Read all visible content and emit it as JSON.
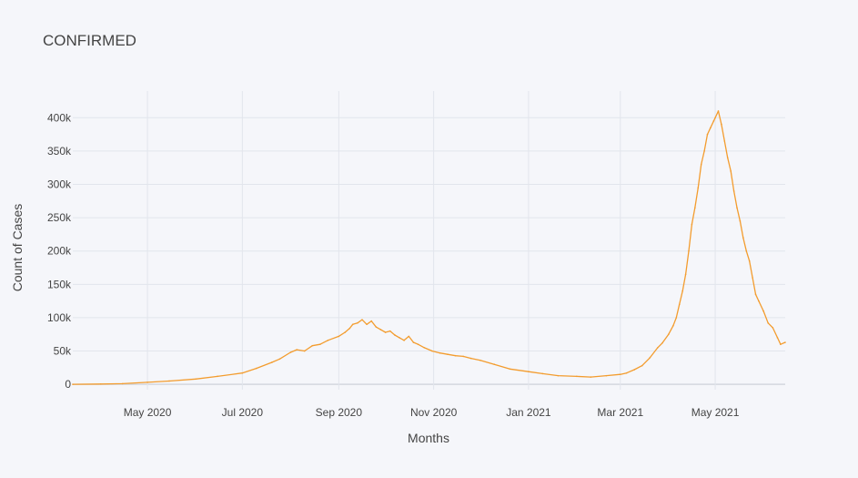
{
  "chart_data": {
    "type": "line",
    "title": "CONFIRMED",
    "xlabel": "Months",
    "ylabel": "Count of Cases",
    "xlim": [
      "2020-03-14",
      "2021-06-15"
    ],
    "ylim": [
      -8000,
      440000
    ],
    "grid": true,
    "legend": "none",
    "line_color": "#f39c2e",
    "x_ticks": [
      {
        "date": "2020-05-01",
        "label": "May 2020"
      },
      {
        "date": "2020-07-01",
        "label": "Jul 2020"
      },
      {
        "date": "2020-09-01",
        "label": "Sep 2020"
      },
      {
        "date": "2020-11-01",
        "label": "Nov 2020"
      },
      {
        "date": "2021-01-01",
        "label": "Jan 2021"
      },
      {
        "date": "2021-03-01",
        "label": "Mar 2021"
      },
      {
        "date": "2021-05-01",
        "label": "May 2021"
      }
    ],
    "y_ticks": [
      {
        "value": 0,
        "label": "0"
      },
      {
        "value": 50000,
        "label": "50k"
      },
      {
        "value": 100000,
        "label": "100k"
      },
      {
        "value": 150000,
        "label": "150k"
      },
      {
        "value": 200000,
        "label": "200k"
      },
      {
        "value": 250000,
        "label": "250k"
      },
      {
        "value": 300000,
        "label": "300k"
      },
      {
        "value": 350000,
        "label": "350k"
      },
      {
        "value": 400000,
        "label": "400k"
      }
    ],
    "x": [
      "2020-03-14",
      "2020-04-01",
      "2020-04-15",
      "2020-05-01",
      "2020-05-15",
      "2020-06-01",
      "2020-06-15",
      "2020-07-01",
      "2020-07-10",
      "2020-07-20",
      "2020-07-25",
      "2020-08-01",
      "2020-08-05",
      "2020-08-10",
      "2020-08-15",
      "2020-08-20",
      "2020-08-25",
      "2020-09-01",
      "2020-09-05",
      "2020-09-08",
      "2020-09-10",
      "2020-09-13",
      "2020-09-16",
      "2020-09-19",
      "2020-09-22",
      "2020-09-25",
      "2020-09-28",
      "2020-10-01",
      "2020-10-04",
      "2020-10-07",
      "2020-10-10",
      "2020-10-13",
      "2020-10-16",
      "2020-10-19",
      "2020-10-22",
      "2020-10-26",
      "2020-10-31",
      "2020-11-05",
      "2020-11-10",
      "2020-11-15",
      "2020-11-20",
      "2020-11-25",
      "2020-12-01",
      "2020-12-10",
      "2020-12-20",
      "2021-01-01",
      "2021-01-10",
      "2021-01-20",
      "2021-02-01",
      "2021-02-10",
      "2021-02-20",
      "2021-03-01",
      "2021-03-05",
      "2021-03-10",
      "2021-03-15",
      "2021-03-20",
      "2021-03-25",
      "2021-03-28",
      "2021-04-01",
      "2021-04-04",
      "2021-04-06",
      "2021-04-08",
      "2021-04-10",
      "2021-04-12",
      "2021-04-14",
      "2021-04-16",
      "2021-04-18",
      "2021-04-20",
      "2021-04-22",
      "2021-04-24",
      "2021-04-26",
      "2021-04-28",
      "2021-04-30",
      "2021-05-01",
      "2021-05-03",
      "2021-05-05",
      "2021-05-07",
      "2021-05-09",
      "2021-05-11",
      "2021-05-13",
      "2021-05-15",
      "2021-05-17",
      "2021-05-19",
      "2021-05-21",
      "2021-05-23",
      "2021-05-25",
      "2021-05-27",
      "2021-05-29",
      "2021-06-01",
      "2021-06-04",
      "2021-06-07",
      "2021-06-10",
      "2021-06-12",
      "2021-06-15"
    ],
    "values": [
      100,
      500,
      1000,
      3000,
      5000,
      8000,
      12000,
      17000,
      24000,
      33000,
      38000,
      48000,
      52000,
      50000,
      58000,
      60000,
      66000,
      72000,
      78000,
      84000,
      90000,
      92000,
      97000,
      90000,
      95000,
      86000,
      82000,
      78000,
      80000,
      74000,
      70000,
      66000,
      72000,
      63000,
      60000,
      55000,
      50000,
      47000,
      45000,
      43000,
      42000,
      39000,
      36000,
      30000,
      23000,
      19000,
      16000,
      13000,
      12000,
      11000,
      13000,
      15000,
      17000,
      22000,
      28000,
      40000,
      55000,
      62000,
      75000,
      88000,
      100000,
      120000,
      140000,
      165000,
      200000,
      240000,
      265000,
      295000,
      330000,
      350000,
      375000,
      385000,
      395000,
      400000,
      410000,
      390000,
      365000,
      340000,
      320000,
      290000,
      265000,
      245000,
      220000,
      200000,
      185000,
      160000,
      135000,
      125000,
      110000,
      92000,
      85000,
      70000,
      60000,
      63000
    ]
  }
}
